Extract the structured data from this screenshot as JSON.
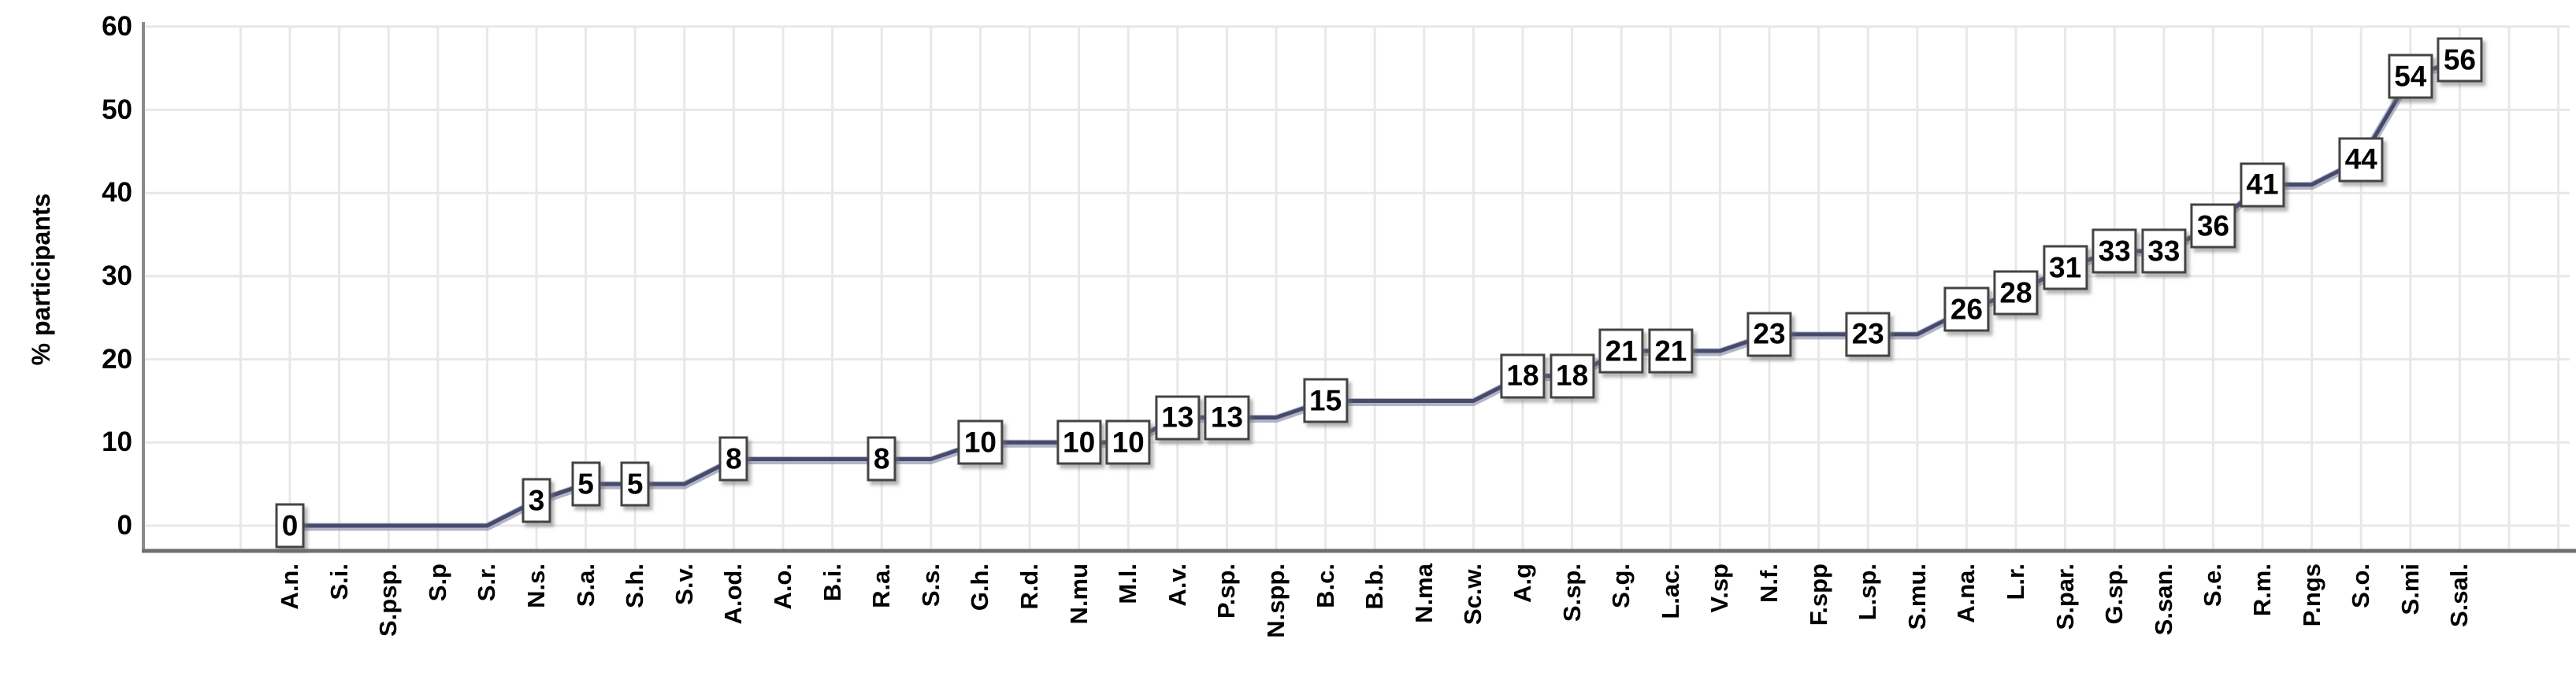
{
  "chart_data": {
    "type": "line",
    "title": "",
    "ylabel": "% participants",
    "xlabel": "",
    "ylim": [
      0,
      60
    ],
    "yticks": [
      0,
      10,
      20,
      30,
      40,
      50,
      60
    ],
    "grid": true,
    "legend": false,
    "categories": [
      "A.n.",
      "S.i.",
      "S.psp.",
      "S.p",
      "S.r.",
      "N.s.",
      "S.a.",
      "S.h.",
      "S.v.",
      "A.od.",
      "A.o.",
      "B.i.",
      "R.a.",
      "S.s.",
      "G.h.",
      "R.d.",
      "N.mu",
      "M.l.",
      "A.v.",
      "P.sp.",
      "N.spp.",
      "B.c.",
      "B.b.",
      "N.ma",
      "Sc.w.",
      "A.g",
      "S.sp.",
      "S.g.",
      "L.ac.",
      "V.sp",
      "N.f.",
      "F.spp",
      "L.sp.",
      "S.mu.",
      "A.na.",
      "L.r.",
      "S.par.",
      "G.sp.",
      "S.san.",
      "S.e.",
      "R.m.",
      "P.ngs",
      "S.o.",
      "S.mi",
      "S.sal."
    ],
    "values": [
      0,
      0,
      0,
      0,
      0,
      3,
      5,
      5,
      5,
      8,
      8,
      8,
      8,
      8,
      10,
      10,
      10,
      10,
      13,
      13,
      13,
      15,
      15,
      15,
      15,
      18,
      18,
      21,
      21,
      21,
      23,
      23,
      23,
      23,
      26,
      28,
      31,
      33,
      33,
      36,
      41,
      41,
      44,
      54,
      56
    ],
    "labeled_indices": [
      0,
      5,
      6,
      7,
      9,
      12,
      14,
      16,
      17,
      18,
      19,
      21,
      25,
      26,
      27,
      28,
      30,
      32,
      34,
      35,
      36,
      37,
      38,
      39,
      40,
      42,
      43,
      44
    ],
    "shown_labels": [
      "0",
      "3",
      "5",
      "5",
      "8",
      "8",
      "10",
      "10",
      "10",
      "13",
      "13",
      "15",
      "18",
      "18",
      "21",
      "21",
      "23",
      "23",
      "26",
      "28",
      "31",
      "33",
      "33",
      "36",
      "41",
      "44",
      "54",
      "56"
    ],
    "colors": {
      "line": "#464A6C",
      "line_halo": "#989CB4",
      "gridline": "#E8E8E8",
      "axis": "#6F6F6F",
      "y_axis": "#8A8A8A",
      "label_box_border": "#444444",
      "label_box_bg": "#FFFFFF",
      "text": "#000000"
    }
  }
}
